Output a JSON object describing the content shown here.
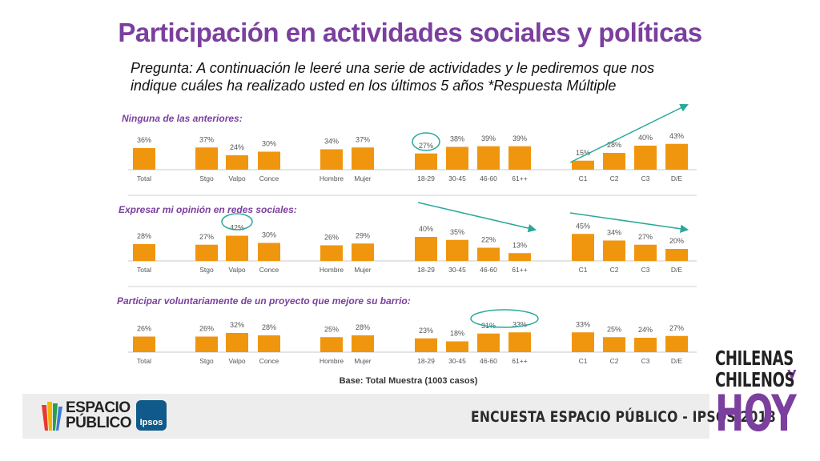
{
  "title": "Participación en actividades sociales y políticas",
  "question_line1": "Pregunta: A continuación le leeré una serie de actividades y le pediremos que nos",
  "question_line2": "indique cuáles ha realizado usted en los últimos 5 años   *Respuesta Múltiple",
  "base_note": "Base: Total Muestra (1003 casos)",
  "survey_label": "ENCUESTA ESPACIO PÚBLICO - IPSOS 2018",
  "logos": {
    "espacio_line1": "ESPACIO",
    "espacio_line2": "PÚBLICO",
    "ipsos": "Ipsos"
  },
  "brand": {
    "line1": "CHILENAS",
    "connector": "y",
    "line2": "CHILENOS",
    "line3": "HOY"
  },
  "colors": {
    "bar": "#f0960e",
    "accent": "#7b3f9e",
    "highlight": "#2aa89a"
  },
  "chart_data": [
    {
      "type": "bar",
      "title": "Ninguna de las anteriores:",
      "categories": [
        "Total",
        "Stgo",
        "Valpo",
        "Conce",
        "Hombre",
        "Mujer",
        "18-29",
        "30-45",
        "46-60",
        "61++",
        "C1",
        "C2",
        "C3",
        "D/E"
      ],
      "values": [
        36,
        37,
        24,
        30,
        34,
        37,
        27,
        38,
        39,
        39,
        15,
        28,
        40,
        43
      ],
      "highlight": [
        "18-29"
      ],
      "trend": "up C1 to D/E"
    },
    {
      "type": "bar",
      "title": "Expresar mi opinión en redes sociales:",
      "categories": [
        "Total",
        "Stgo",
        "Valpo",
        "Conce",
        "Hombre",
        "Mujer",
        "18-29",
        "30-45",
        "46-60",
        "61++",
        "C1",
        "C2",
        "C3",
        "D/E"
      ],
      "values": [
        28,
        27,
        42,
        30,
        26,
        29,
        40,
        35,
        22,
        13,
        45,
        34,
        27,
        20
      ],
      "highlight": [
        "Valpo"
      ],
      "trend": "down 18-29 to 61++; down C1 to D/E"
    },
    {
      "type": "bar",
      "title": "Participar voluntariamente de un proyecto que mejore su barrio:",
      "categories": [
        "Total",
        "Stgo",
        "Valpo",
        "Conce",
        "Hombre",
        "Mujer",
        "18-29",
        "30-45",
        "46-60",
        "61++",
        "C1",
        "C2",
        "C3",
        "D/E"
      ],
      "values": [
        26,
        26,
        32,
        28,
        25,
        28,
        23,
        18,
        31,
        33,
        33,
        25,
        24,
        27
      ],
      "highlight": [
        "46-60",
        "61++"
      ]
    }
  ]
}
